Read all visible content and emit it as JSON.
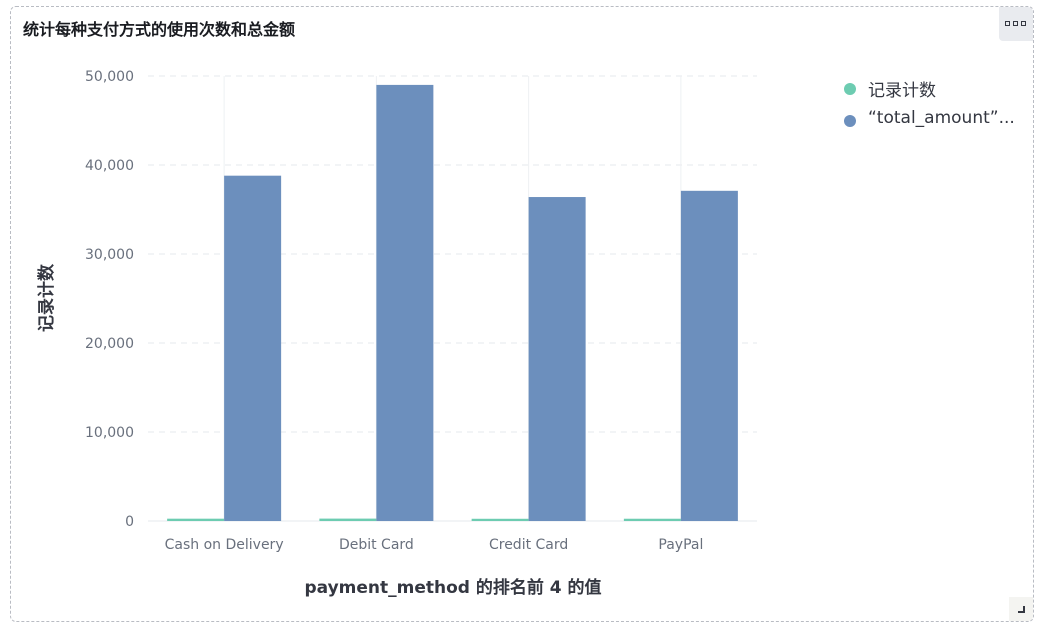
{
  "panel": {
    "title": "统计每种支付方式的使用次数和总金额"
  },
  "icons": {
    "options": "more-options-icon",
    "resize": "resize-corner-icon"
  },
  "colors": {
    "count_series": "#6dccb1",
    "amount_series": "#6c8fbd",
    "grid": "#e6e8ec",
    "axis_text": "#69707d"
  },
  "chart_data": {
    "type": "bar",
    "title": "统计每种支付方式的使用次数和总金额",
    "xlabel": "payment_method 的排名前 4 的值",
    "ylabel": "记录计数",
    "categories": [
      "Cash on Delivery",
      "Debit Card",
      "Credit Card",
      "PayPal"
    ],
    "series": [
      {
        "name": "记录计数",
        "values": [
          260,
          270,
          250,
          255
        ]
      },
      {
        "name": "“total_amount”...",
        "values": [
          38800,
          49000,
          36400,
          37100
        ]
      }
    ],
    "ylim": [
      0,
      50000
    ],
    "yticks": [
      0,
      10000,
      20000,
      30000,
      40000,
      50000
    ],
    "ytick_labels": [
      "0",
      "10,000",
      "20,000",
      "30,000",
      "40,000",
      "50,000"
    ],
    "grid": true,
    "legend": "top-right"
  }
}
